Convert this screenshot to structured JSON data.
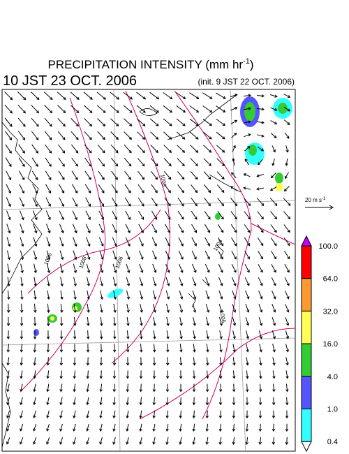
{
  "header": {
    "title": "PRECIPITATION INTENSITY (mm hr",
    "title_exponent": "-1",
    "title_close": ")",
    "time": "10 JST 23 OCT. 2006",
    "init": "(init. 9 JST 22 OCT. 2006)"
  },
  "map": {
    "isobar_labels": [
      "1006",
      "1006",
      "1006",
      "1008",
      "1006",
      "1004"
    ]
  },
  "reference_vector": {
    "label": "20 m s",
    "label_exponent": "-1"
  },
  "colorbar": {
    "labels": [
      "100.0",
      "64.0",
      "32.0",
      "16.0",
      "4.0",
      "1.0",
      "0.4"
    ],
    "colors": [
      "#cc00ff",
      "#ff0000",
      "#ff9933",
      "#ffff55",
      "#33cc33",
      "#5555ff",
      "#33ffff",
      "#ffffff"
    ]
  }
}
